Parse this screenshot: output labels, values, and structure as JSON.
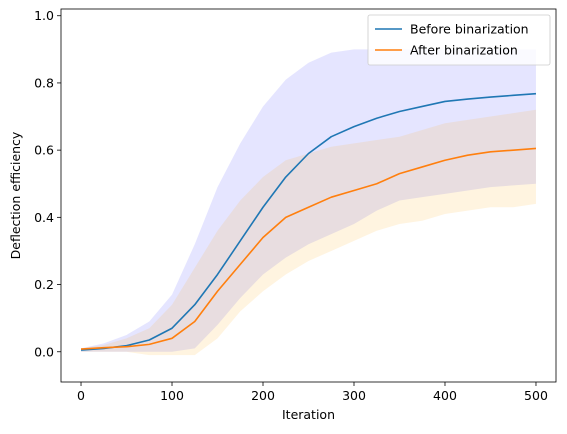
{
  "chart_data": {
    "type": "line",
    "title": "",
    "xlabel": "Iteration",
    "ylabel": "Deflection efficiency",
    "xlim": [
      -22,
      522
    ],
    "ylim": [
      -0.09,
      1.02
    ],
    "xticks": [
      0,
      100,
      200,
      300,
      400,
      500
    ],
    "yticks": [
      0.0,
      0.2,
      0.4,
      0.6,
      0.8,
      1.0
    ],
    "xtick_labels": [
      "0",
      "100",
      "200",
      "300",
      "400",
      "500"
    ],
    "ytick_labels": [
      "0.0",
      "0.2",
      "0.4",
      "0.6",
      "0.8",
      "1.0"
    ],
    "grid": false,
    "legend_position": "top-right",
    "x": [
      0,
      25,
      50,
      75,
      100,
      125,
      150,
      175,
      200,
      225,
      250,
      275,
      300,
      325,
      350,
      375,
      400,
      425,
      450,
      475,
      500
    ],
    "series": [
      {
        "name": "Before binarization",
        "color": "#1f77b4",
        "values": [
          0.005,
          0.01,
          0.018,
          0.035,
          0.07,
          0.14,
          0.23,
          0.33,
          0.43,
          0.52,
          0.59,
          0.64,
          0.67,
          0.695,
          0.715,
          0.73,
          0.745,
          0.752,
          0.758,
          0.763,
          0.768
        ],
        "band_color": "#0000ff",
        "band_lower": [
          0.0,
          0.0,
          0.0,
          0.0,
          0.0,
          0.01,
          0.08,
          0.16,
          0.23,
          0.28,
          0.32,
          0.35,
          0.38,
          0.42,
          0.45,
          0.46,
          0.47,
          0.48,
          0.49,
          0.495,
          0.5
        ],
        "band_upper": [
          0.01,
          0.025,
          0.05,
          0.09,
          0.17,
          0.32,
          0.49,
          0.62,
          0.73,
          0.81,
          0.86,
          0.89,
          0.9,
          0.9,
          0.9,
          0.9,
          0.9,
          0.9,
          0.9,
          0.9,
          0.9
        ]
      },
      {
        "name": "After binarization",
        "color": "#ff7f0e",
        "values": [
          0.008,
          0.012,
          0.015,
          0.022,
          0.04,
          0.09,
          0.18,
          0.26,
          0.34,
          0.4,
          0.43,
          0.46,
          0.48,
          0.5,
          0.53,
          0.55,
          0.57,
          0.585,
          0.595,
          0.6,
          0.605
        ],
        "band_color": "#ffa500",
        "band_lower": [
          0.0,
          0.0,
          0.0,
          -0.01,
          -0.01,
          -0.01,
          0.04,
          0.12,
          0.18,
          0.23,
          0.27,
          0.3,
          0.33,
          0.36,
          0.38,
          0.39,
          0.41,
          0.42,
          0.43,
          0.43,
          0.44
        ],
        "band_upper": [
          0.01,
          0.02,
          0.04,
          0.07,
          0.14,
          0.25,
          0.36,
          0.45,
          0.52,
          0.57,
          0.59,
          0.61,
          0.62,
          0.63,
          0.64,
          0.66,
          0.68,
          0.69,
          0.7,
          0.71,
          0.72
        ]
      }
    ]
  }
}
